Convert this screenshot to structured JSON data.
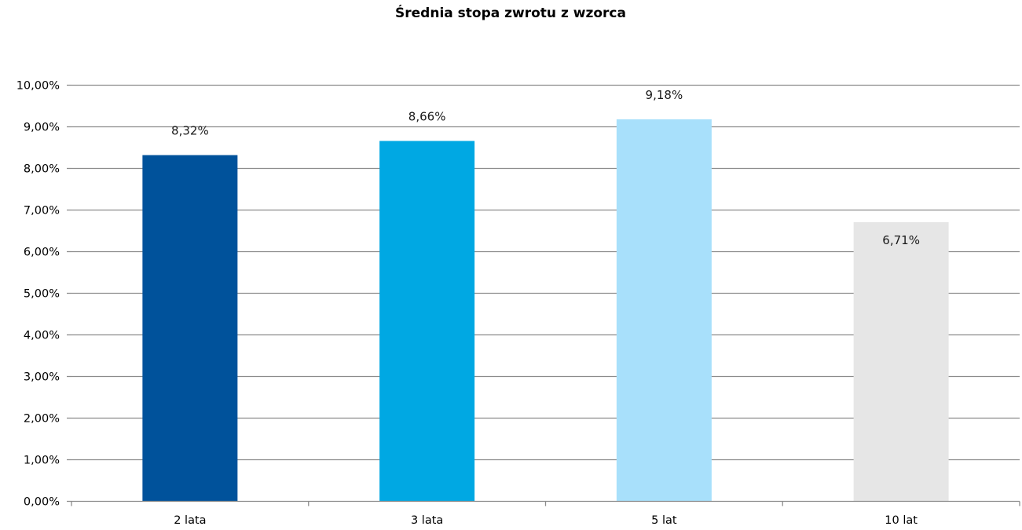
{
  "chart_data": {
    "type": "bar",
    "title": "Średnia stopa zwrotu z wzorca",
    "xlabel": "",
    "ylabel": "",
    "categories": [
      "2 lata",
      "3 lata",
      "5 lat",
      "10 lat"
    ],
    "values": [
      8.32,
      8.66,
      9.18,
      6.71
    ],
    "data_labels": [
      "8,32%",
      "8,66%",
      "9,18%",
      "6,71%"
    ],
    "bar_colors": [
      "#00529b",
      "#00a8e3",
      "#a8e0fb",
      "#e6e6e6"
    ],
    "ylim": [
      0,
      10
    ],
    "y_ticks": [
      0,
      1,
      2,
      3,
      4,
      5,
      6,
      7,
      8,
      9,
      10
    ],
    "y_tick_labels": [
      "0,00%",
      "1,00%",
      "2,00%",
      "3,00%",
      "4,00%",
      "5,00%",
      "6,00%",
      "7,00%",
      "8,00%",
      "9,00%",
      "10,00%"
    ],
    "grid": true,
    "legend": "none",
    "gridline_color": "#8c8c8c"
  }
}
